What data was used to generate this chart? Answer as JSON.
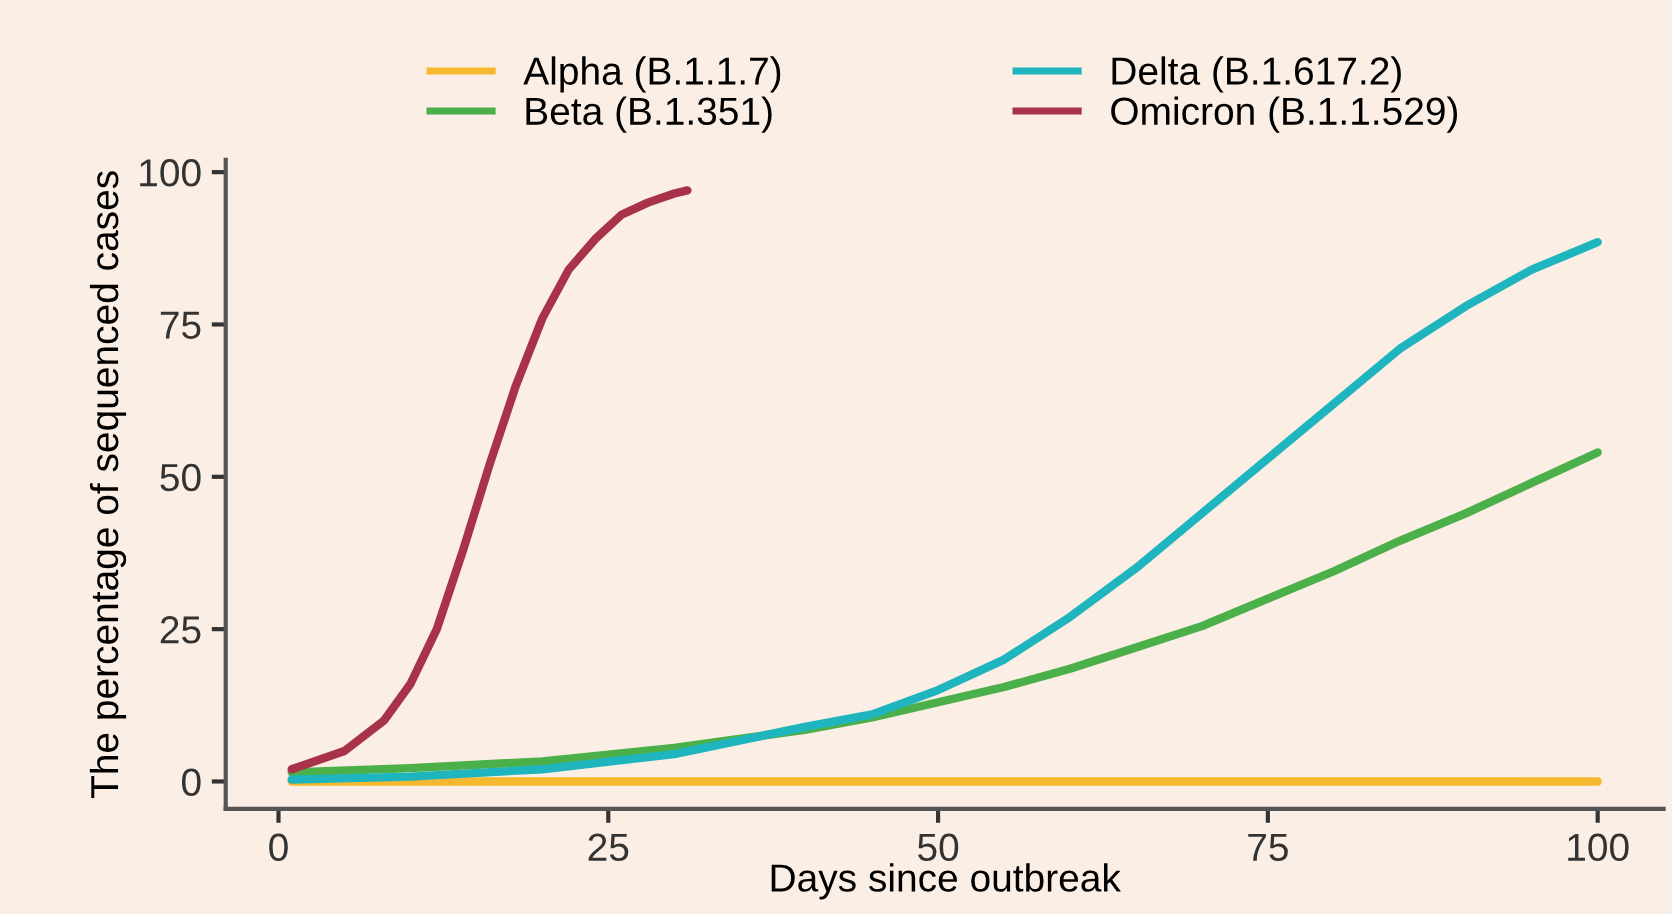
{
  "chart_data": {
    "type": "line",
    "xlabel": "Days since outbreak",
    "ylabel": "The percentage of sequenced cases",
    "xlim": [
      -4,
      105
    ],
    "ylim": [
      -4.5,
      102
    ],
    "xticks": [
      0,
      25,
      50,
      75,
      100
    ],
    "yticks": [
      0,
      25,
      50,
      75,
      100
    ],
    "grid": false,
    "legend": "top",
    "marker": "none",
    "line_style": "solid",
    "series": [
      {
        "name": "Alpha (B.1.1.7)",
        "color": "#f5b82e",
        "x": [
          1,
          25,
          50,
          75,
          100
        ],
        "values": [
          0,
          0,
          0,
          0,
          0
        ]
      },
      {
        "name": "Beta (B.1.351)",
        "color": "#4bb04a",
        "x": [
          1,
          10,
          20,
          30,
          40,
          45,
          50,
          55,
          60,
          65,
          70,
          75,
          80,
          85,
          90,
          95,
          100
        ],
        "values": [
          1.5,
          2.2,
          3.3,
          5.5,
          8.5,
          10.5,
          13,
          15.5,
          18.5,
          22,
          25.5,
          30,
          34.5,
          39.5,
          44,
          49,
          54
        ]
      },
      {
        "name": "Delta (B.1.617.2)",
        "color": "#1fb5bf",
        "x": [
          1,
          10,
          20,
          30,
          40,
          45,
          50,
          55,
          60,
          65,
          70,
          75,
          80,
          85,
          90,
          95,
          100
        ],
        "values": [
          0.3,
          0.8,
          2,
          4.5,
          9,
          11,
          15,
          20,
          27,
          35,
          44,
          53,
          62,
          71,
          78,
          84,
          88.5
        ]
      },
      {
        "name": "Omicron (B.1.1.529)",
        "color": "#a83248",
        "x": [
          1,
          5,
          8,
          10,
          12,
          14,
          16,
          18,
          20,
          22,
          24,
          26,
          28,
          30,
          31
        ],
        "values": [
          2,
          5,
          10,
          16,
          25,
          38,
          52,
          65,
          76,
          84,
          89,
          93,
          95,
          96.5,
          97
        ]
      }
    ]
  }
}
